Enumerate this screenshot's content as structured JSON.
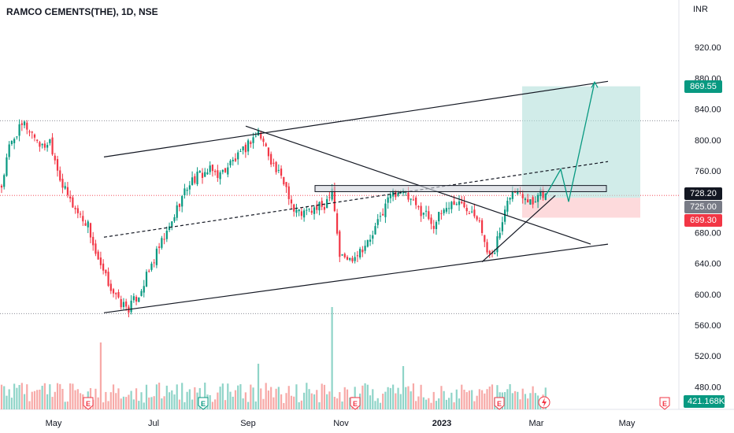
{
  "header": {
    "title": "RAMCO CEMENTS(THE), 1D, NSE",
    "currency": "INR"
  },
  "price_tags": {
    "target": {
      "label": "869.55",
      "color": "#089981"
    },
    "last": {
      "label": "728.20",
      "color": "#131722"
    },
    "entry": {
      "label": "725.00",
      "color": "#787b86"
    },
    "stop": {
      "label": "699.30",
      "color": "#f23645"
    },
    "volume": {
      "label": "421.168K",
      "color": "#089981"
    }
  },
  "chart_data": {
    "type": "candlestick",
    "symbol": "RAMCO CEMENTS(THE)",
    "interval": "1D",
    "exchange": "NSE",
    "currency": "INR",
    "y_ticks": [
      920,
      880,
      840,
      800,
      760,
      725,
      680,
      640,
      600,
      560,
      520,
      480
    ],
    "ylim": [
      458,
      940
    ],
    "x_ticks": [
      "May",
      "Jul",
      "Sep",
      "Nov",
      "2023",
      "Mar",
      "May"
    ],
    "colors": {
      "up": "#089981",
      "down": "#f23645",
      "volume_up": "#8fd4c8",
      "volume_down": "#f7a9a7"
    },
    "price_anchors": [
      [
        0,
        740
      ],
      [
        3,
        790
      ],
      [
        6,
        810
      ],
      [
        9,
        820
      ],
      [
        13,
        805
      ],
      [
        16,
        790
      ],
      [
        19,
        800
      ],
      [
        24,
        740
      ],
      [
        29,
        710
      ],
      [
        34,
        690
      ],
      [
        38,
        640
      ],
      [
        42,
        615
      ],
      [
        46,
        590
      ],
      [
        50,
        582
      ],
      [
        54,
        600
      ],
      [
        58,
        630
      ],
      [
        62,
        660
      ],
      [
        66,
        685
      ],
      [
        70,
        720
      ],
      [
        74,
        745
      ],
      [
        78,
        755
      ],
      [
        82,
        760
      ],
      [
        86,
        755
      ],
      [
        90,
        770
      ],
      [
        94,
        780
      ],
      [
        98,
        800
      ],
      [
        101,
        810
      ],
      [
        104,
        790
      ],
      [
        108,
        760
      ],
      [
        112,
        740
      ],
      [
        115,
        708
      ],
      [
        119,
        705
      ],
      [
        123,
        710
      ],
      [
        127,
        715
      ],
      [
        130,
        740
      ],
      [
        133,
        650
      ],
      [
        137,
        645
      ],
      [
        141,
        658
      ],
      [
        145,
        670
      ],
      [
        149,
        700
      ],
      [
        153,
        730
      ],
      [
        157,
        735
      ],
      [
        161,
        720
      ],
      [
        164,
        710
      ],
      [
        167,
        705
      ],
      [
        170,
        690
      ],
      [
        174,
        710
      ],
      [
        178,
        720
      ],
      [
        182,
        715
      ],
      [
        185,
        710
      ],
      [
        188,
        700
      ],
      [
        191,
        650
      ],
      [
        194,
        660
      ],
      [
        197,
        690
      ],
      [
        200,
        730
      ],
      [
        203,
        735
      ],
      [
        206,
        728
      ],
      [
        209,
        720
      ],
      [
        212,
        735
      ],
      [
        214,
        728
      ]
    ],
    "annotations": {
      "channel_upper": [
        [
          132,
          778
        ],
        [
          772,
          876
        ]
      ],
      "channel_lower": [
        [
          132,
          576
        ],
        [
          772,
          665
        ]
      ],
      "channel_midline": [
        [
          132,
          674
        ],
        [
          772,
          772
        ]
      ],
      "descending_trendline": [
        [
          312,
          818
        ],
        [
          750,
          665
        ]
      ],
      "rising_support": [
        [
          612,
          642
        ],
        [
          705,
          728
        ]
      ],
      "resistance_zone": {
        "x": [
          400,
          770
        ],
        "y": [
          733,
          741
        ]
      },
      "position": {
        "entry": 725.0,
        "target": 869.55,
        "stop": 699.3,
        "x": [
          663,
          813
        ]
      },
      "projected_path": [
        [
          693,
          728
        ],
        [
          712,
          762
        ],
        [
          722,
          720
        ],
        [
          755,
          875
        ]
      ],
      "dotted_levels": [
        825,
        728,
        575,
        825
      ]
    },
    "events": [
      "E",
      "E",
      "E",
      "E",
      "E",
      "E"
    ],
    "dividend_icon": "lightning-icon"
  }
}
